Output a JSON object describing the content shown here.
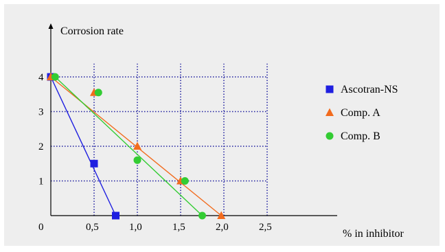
{
  "chart_data": {
    "type": "scatter",
    "ylabel": "Corrosion rate",
    "xlabel": "% in inhibitor",
    "origin_label": "0",
    "x_ticks": [
      "0,5",
      "1,0",
      "1,5",
      "2,0",
      "2,5"
    ],
    "x_tick_values": [
      0.5,
      1.0,
      1.5,
      2.0,
      2.5
    ],
    "y_ticks": [
      "1",
      "2",
      "3",
      "4"
    ],
    "y_tick_values": [
      1,
      2,
      3,
      4
    ],
    "xlim": [
      0,
      3.5
    ],
    "ylim": [
      0,
      5.3
    ],
    "grid": true,
    "legend_position": "right",
    "series": [
      {
        "name": "Ascotran-NS",
        "color": "#1f1fe0",
        "marker": "square",
        "points": [
          [
            0.0,
            4.0
          ],
          [
            0.5,
            1.5
          ],
          [
            0.75,
            0.0
          ]
        ],
        "fit_line": [
          [
            0.0,
            4.0
          ],
          [
            0.75,
            0.0
          ]
        ]
      },
      {
        "name": "Comp. A",
        "color": "#f26b1d",
        "marker": "triangle",
        "points": [
          [
            0.0,
            4.0
          ],
          [
            0.5,
            3.55
          ],
          [
            1.0,
            2.0
          ],
          [
            1.5,
            1.0
          ],
          [
            1.97,
            0.0
          ]
        ],
        "fit_line": [
          [
            0.0,
            4.0
          ],
          [
            1.97,
            0.0
          ]
        ]
      },
      {
        "name": "Comp. B",
        "color": "#33cc33",
        "marker": "circle",
        "points": [
          [
            0.05,
            4.0
          ],
          [
            0.55,
            3.55
          ],
          [
            1.0,
            1.6
          ],
          [
            1.55,
            1.0
          ],
          [
            1.75,
            0.0
          ]
        ],
        "fit_line": [
          [
            0.05,
            4.0
          ],
          [
            1.75,
            0.0
          ]
        ]
      }
    ]
  }
}
